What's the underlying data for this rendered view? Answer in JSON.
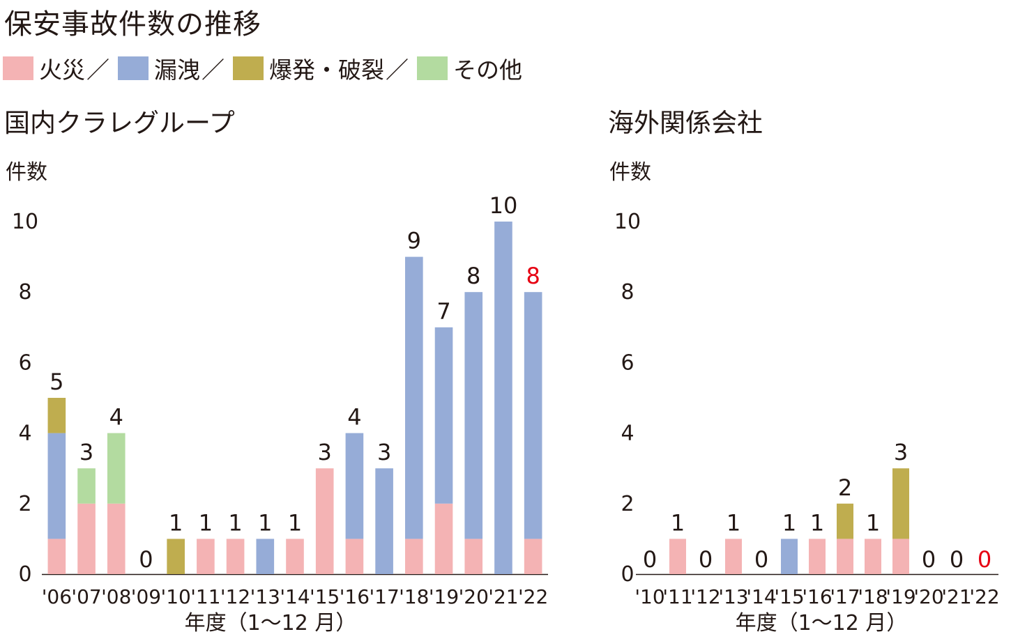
{
  "title": "保安事故件数の推移",
  "legend": [
    {
      "name": "火災",
      "color": "#f4b3b4"
    },
    {
      "name": "漏洩",
      "color": "#96acd7"
    },
    {
      "name": "爆発・破裂",
      "color": "#bfad4f"
    },
    {
      "name": "その他",
      "color": "#b3dba0"
    }
  ],
  "legend_separator": "／",
  "chart_data": [
    {
      "type": "bar",
      "stacked": true,
      "title": "国内クラレグループ",
      "ylabel": "件数",
      "xlabel": "年度（1～12 月）",
      "ylim": [
        0,
        10
      ],
      "yticks": [
        "0",
        "2",
        "4",
        "6",
        "8",
        "10"
      ],
      "categories": [
        "'06",
        "'07",
        "'08",
        "'09",
        "'10",
        "'11",
        "'12",
        "'13",
        "'14",
        "'15",
        "'16",
        "'17",
        "'18",
        "'19",
        "'20",
        "'21",
        "'22"
      ],
      "series": [
        {
          "name": "火災",
          "values": [
            1,
            2,
            2,
            0,
            0,
            1,
            1,
            0,
            1,
            3,
            1,
            0,
            1,
            2,
            1,
            0,
            1
          ]
        },
        {
          "name": "漏洩",
          "values": [
            3,
            0,
            0,
            0,
            0,
            0,
            0,
            1,
            0,
            0,
            3,
            3,
            8,
            5,
            7,
            10,
            7
          ]
        },
        {
          "name": "爆発・破裂",
          "values": [
            1,
            0,
            0,
            0,
            1,
            0,
            0,
            0,
            0,
            0,
            0,
            0,
            0,
            0,
            0,
            0,
            0
          ]
        },
        {
          "name": "その他",
          "values": [
            0,
            1,
            2,
            0,
            0,
            0,
            0,
            0,
            0,
            0,
            0,
            0,
            0,
            0,
            0,
            0,
            0
          ]
        }
      ],
      "totals": [
        5,
        3,
        4,
        0,
        1,
        1,
        1,
        1,
        1,
        3,
        4,
        3,
        9,
        7,
        8,
        10,
        8
      ],
      "total_labels": [
        "5",
        "3",
        "4",
        "0",
        "1",
        "1",
        "1",
        "1",
        "1",
        "3",
        "4",
        "3",
        "9",
        "7",
        "8",
        "10",
        "8"
      ],
      "highlight_last_color": "#e60012"
    },
    {
      "type": "bar",
      "stacked": true,
      "title": "海外関係会社",
      "ylabel": "件数",
      "xlabel": "年度（1～12 月）",
      "ylim": [
        0,
        10
      ],
      "yticks": [
        "0",
        "2",
        "4",
        "6",
        "8",
        "10"
      ],
      "categories": [
        "'10",
        "'11",
        "'12",
        "'13",
        "'14",
        "'15",
        "'16",
        "'17",
        "'18",
        "'19",
        "'20",
        "'21",
        "'22"
      ],
      "series": [
        {
          "name": "火災",
          "values": [
            0,
            1,
            0,
            1,
            0,
            0,
            1,
            1,
            1,
            1,
            0,
            0,
            0
          ]
        },
        {
          "name": "漏洩",
          "values": [
            0,
            0,
            0,
            0,
            0,
            1,
            0,
            0,
            0,
            0,
            0,
            0,
            0
          ]
        },
        {
          "name": "爆発・破裂",
          "values": [
            0,
            0,
            0,
            0,
            0,
            0,
            0,
            1,
            0,
            2,
            0,
            0,
            0
          ]
        },
        {
          "name": "その他",
          "values": [
            0,
            0,
            0,
            0,
            0,
            0,
            0,
            0,
            0,
            0,
            0,
            0,
            0
          ]
        }
      ],
      "totals": [
        0,
        1,
        0,
        1,
        0,
        1,
        1,
        2,
        1,
        3,
        0,
        0,
        0
      ],
      "total_labels": [
        "0",
        "1",
        "0",
        "1",
        "0",
        "1",
        "1",
        "2",
        "1",
        "3",
        "0",
        "0",
        "0"
      ],
      "highlight_last_color": "#e60012"
    }
  ]
}
